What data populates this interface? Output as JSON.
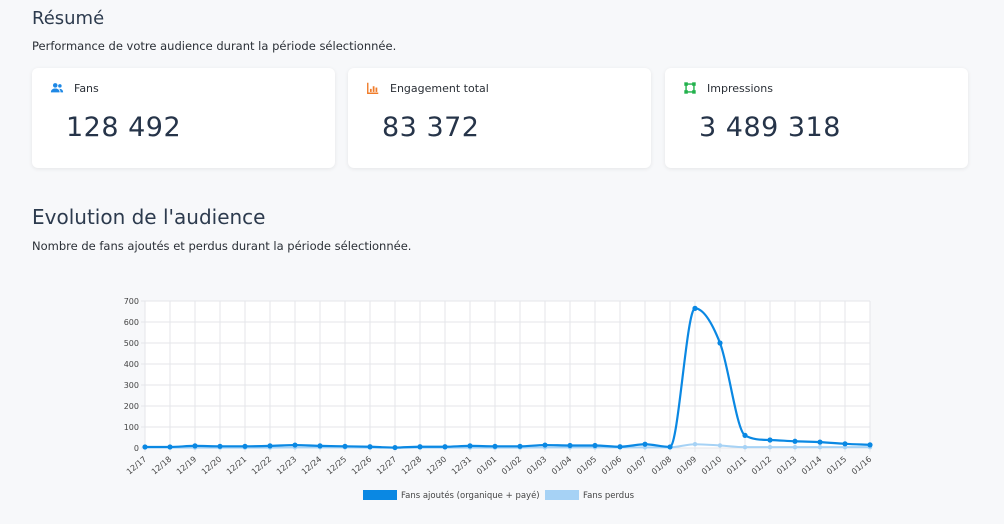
{
  "summary": {
    "title": "Résumé",
    "subtitle": "Performance de votre audience durant la période sélectionnée.",
    "cards": [
      {
        "label": "Fans",
        "value": "128 492",
        "icon": "users-icon",
        "color": "#1e88e5"
      },
      {
        "label": "Engagement total",
        "value": "83 372",
        "icon": "bar-chart-icon",
        "color": "#f07c2a"
      },
      {
        "label": "Impressions",
        "value": "3 489 318",
        "icon": "frame-icon",
        "color": "#22b14c"
      }
    ]
  },
  "evolution": {
    "title": "Evolution de l'audience",
    "subtitle": "Nombre de fans ajoutés et perdus durant la période sélectionnée."
  },
  "chart_data": {
    "type": "line",
    "title": "",
    "xlabel": "",
    "ylabel": "",
    "ylim": [
      0,
      700
    ],
    "yticks": [
      0,
      100,
      200,
      300,
      400,
      500,
      600,
      700
    ],
    "grid": true,
    "legend_position": "bottom",
    "categories": [
      "12/17",
      "12/18",
      "12/19",
      "12/20",
      "12/21",
      "12/22",
      "12/23",
      "12/24",
      "12/25",
      "12/26",
      "12/27",
      "12/28",
      "12/30",
      "12/31",
      "01/01",
      "01/02",
      "01/03",
      "01/04",
      "01/05",
      "01/06",
      "01/07",
      "01/08",
      "01/09",
      "01/10",
      "01/11",
      "01/12",
      "01/13",
      "01/14",
      "01/15",
      "01/16"
    ],
    "series": [
      {
        "name": "Fans ajoutés (organique + payé)",
        "color": "#0a88e3",
        "values": [
          5,
          5,
          10,
          8,
          8,
          10,
          14,
          10,
          8,
          6,
          2,
          6,
          6,
          10,
          8,
          8,
          14,
          12,
          12,
          6,
          18,
          5,
          665,
          500,
          60,
          38,
          32,
          28,
          20,
          15
        ]
      },
      {
        "name": "Fans perdus",
        "color": "#a6d2f5",
        "values": [
          2,
          2,
          2,
          2,
          2,
          2,
          3,
          3,
          3,
          2,
          2,
          2,
          2,
          2,
          2,
          2,
          3,
          3,
          3,
          3,
          3,
          3,
          18,
          12,
          4,
          4,
          4,
          4,
          4,
          4
        ]
      }
    ]
  }
}
